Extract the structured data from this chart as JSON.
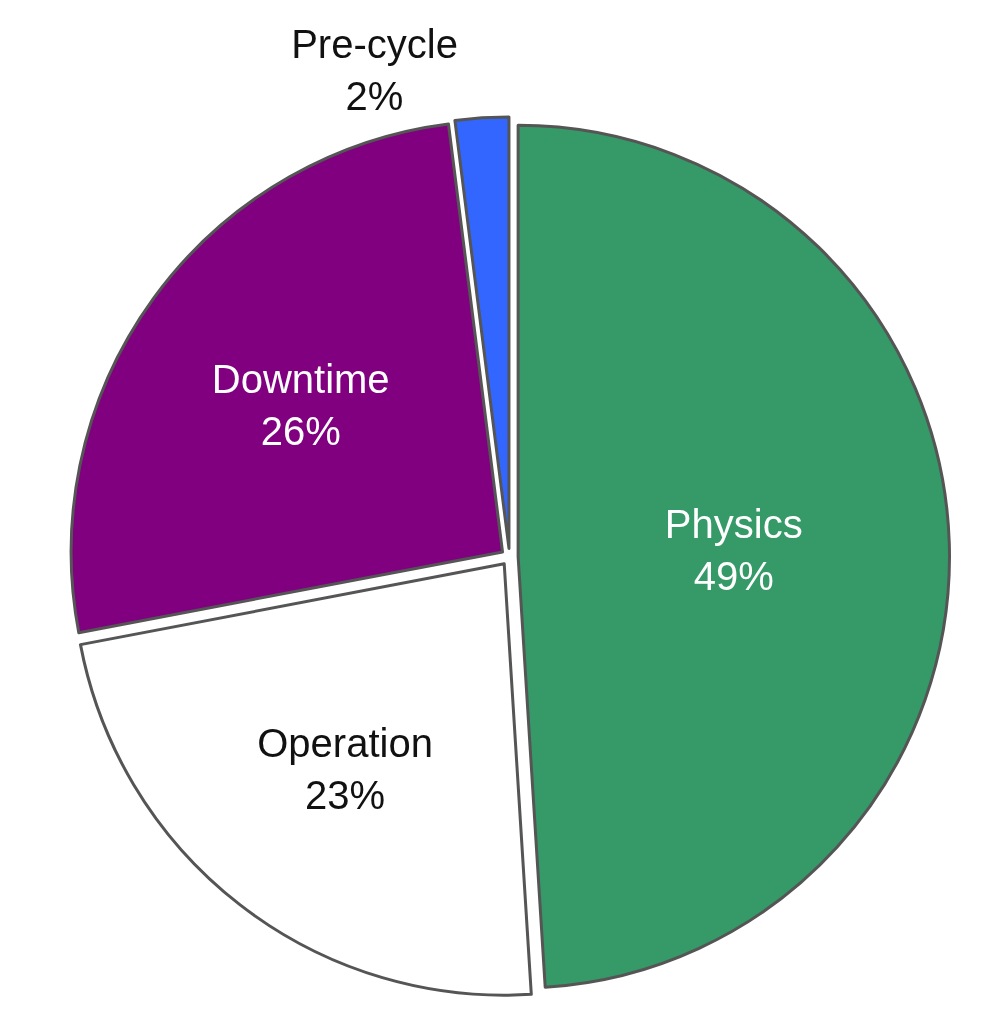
{
  "chart_data": {
    "type": "pie",
    "categories": [
      "Physics",
      "Operation",
      "Downtime",
      "Pre-cycle"
    ],
    "values": [
      49,
      23,
      26,
      2
    ],
    "value_labels": [
      "49%",
      "23%",
      "26%",
      "2%"
    ],
    "colors": [
      "#359a68",
      "#ffffff",
      "#800080",
      "#3366ff"
    ],
    "legend": false
  }
}
